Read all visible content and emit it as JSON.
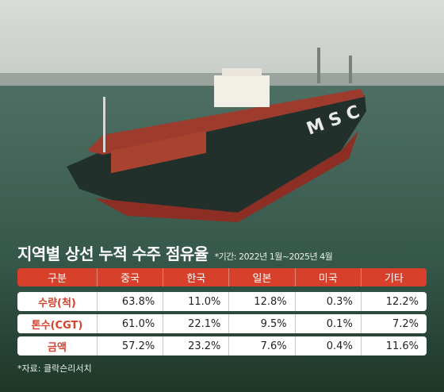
{
  "title": "지역별 상선 누적 수주 점유율",
  "note": "*기간: 2022년 1월~2025년 4월",
  "table": {
    "header": [
      "구분",
      "중국",
      "한국",
      "일본",
      "미국",
      "기타"
    ],
    "rows": [
      [
        "수량(척)",
        "63.8%",
        "11.0%",
        "12.8%",
        "0.3%",
        "12.2%"
      ],
      [
        "톤수(CGT)",
        "61.0%",
        "22.1%",
        "9.5%",
        "0.1%",
        "7.2%"
      ],
      [
        "금액",
        "57.2%",
        "23.2%",
        "7.6%",
        "0.4%",
        "11.6%"
      ]
    ]
  },
  "source": "*자료: 클락슨리서치"
}
